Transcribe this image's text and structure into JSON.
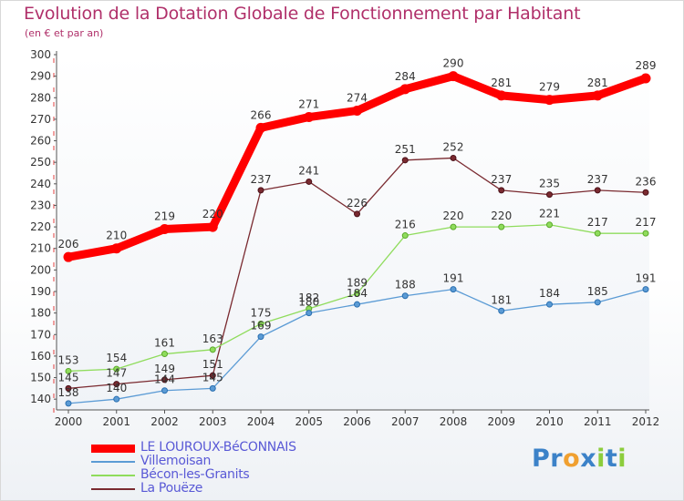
{
  "chart_data": {
    "type": "line",
    "title": "Evolution de la Dotation Globale de Fonctionnement par Habitant",
    "subtitle": "(en € et par an)",
    "xlabel": "",
    "ylabel": "",
    "x": [
      "2000",
      "2001",
      "2002",
      "2003",
      "2004",
      "2005",
      "2006",
      "2007",
      "2008",
      "2009",
      "2010",
      "2011",
      "2012"
    ],
    "ylim": [
      135,
      300
    ],
    "yticks": [
      140,
      150,
      160,
      170,
      180,
      190,
      200,
      210,
      220,
      230,
      240,
      250,
      260,
      270,
      280,
      290,
      300
    ],
    "grid": false,
    "legend": "bottom-left",
    "series": [
      {
        "name": "LE LOUROUX-BéCONNAIS",
        "color": "#ff0000",
        "values": [
          206,
          210,
          219,
          220,
          266,
          271,
          274,
          284,
          290,
          281,
          279,
          281,
          289
        ]
      },
      {
        "name": "Villemoisan",
        "color": "#5b9bd5",
        "values": [
          138,
          140,
          144,
          145,
          169,
          180,
          184,
          188,
          191,
          181,
          184,
          185,
          191
        ]
      },
      {
        "name": "Bécon-les-Granits",
        "color": "#8fdc5c",
        "values": [
          153,
          154,
          161,
          163,
          175,
          182,
          189,
          216,
          220,
          220,
          221,
          217,
          217
        ]
      },
      {
        "name": "La Pouëze",
        "color": "#7a2a30",
        "values": [
          145,
          147,
          149,
          151,
          237,
          241,
          226,
          251,
          252,
          237,
          235,
          237,
          236
        ]
      }
    ]
  },
  "logo": {
    "letters": [
      {
        "ch": "P",
        "color": "#3c82c8"
      },
      {
        "ch": "r",
        "color": "#3c82c8"
      },
      {
        "ch": "o",
        "color": "#f0a030"
      },
      {
        "ch": "x",
        "color": "#3c82c8"
      },
      {
        "ch": "i",
        "color": "#8ccd3c"
      },
      {
        "ch": "t",
        "color": "#3c82c8"
      },
      {
        "ch": "i",
        "color": "#8ccd3c"
      }
    ]
  }
}
